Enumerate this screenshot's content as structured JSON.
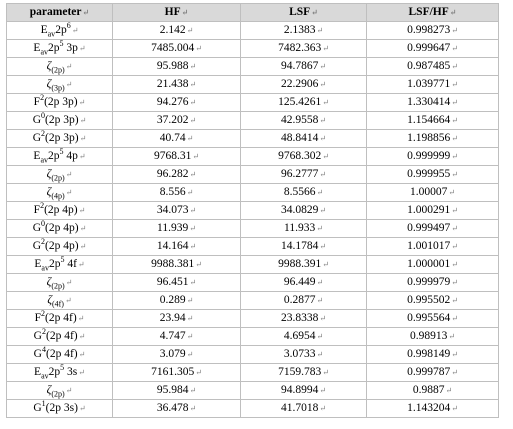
{
  "table": {
    "headers": [
      "parameter",
      "HF",
      "LSF",
      "LSF/HF"
    ],
    "paragraph_mark": "↵",
    "rows": [
      {
        "param": {
          "main": "E",
          "sub": "av",
          "post": "2p",
          "sup": "6"
        },
        "hf": "2.142",
        "lsf": "2.1383",
        "ratio": "0.998273"
      },
      {
        "param": {
          "main": "E",
          "sub": "av",
          "post": "2p",
          "sup": "5",
          "tail": " 3p"
        },
        "hf": "7485.004",
        "lsf": "7482.363",
        "ratio": "0.999647"
      },
      {
        "param": {
          "main": "ζ",
          "sub": "(2p)"
        },
        "hf": "95.988",
        "lsf": "94.7867",
        "ratio": "0.987485"
      },
      {
        "param": {
          "main": "ζ",
          "sub": "(3p)"
        },
        "hf": "21.438",
        "lsf": "22.2906",
        "ratio": "1.039771"
      },
      {
        "param": {
          "main": "F",
          "sup": "2",
          "post": "(2p 3p)"
        },
        "hf": "94.276",
        "lsf": "125.4261",
        "ratio": "1.330414"
      },
      {
        "param": {
          "main": "G",
          "sup": "0",
          "post": "(2p 3p)"
        },
        "hf": "37.202",
        "lsf": "42.9558",
        "ratio": "1.154664"
      },
      {
        "param": {
          "main": "G",
          "sup": "2",
          "post": "(2p 3p)"
        },
        "hf": "40.74",
        "lsf": "48.8414",
        "ratio": "1.198856"
      },
      {
        "param": {
          "main": "E",
          "sub": "av",
          "post": "2p",
          "sup": "5",
          "tail": " 4p"
        },
        "hf": "9768.31",
        "lsf": "9768.302",
        "ratio": "0.999999"
      },
      {
        "param": {
          "main": "ζ",
          "sub": "(2p)"
        },
        "hf": "96.282",
        "lsf": "96.2777",
        "ratio": "0.999955"
      },
      {
        "param": {
          "main": "ζ",
          "sub": "(4p)"
        },
        "hf": "8.556",
        "lsf": "8.5566",
        "ratio": "1.00007"
      },
      {
        "param": {
          "main": "F",
          "sup": "2",
          "post": "(2p 4p)"
        },
        "hf": "34.073",
        "lsf": "34.0829",
        "ratio": "1.000291"
      },
      {
        "param": {
          "main": "G",
          "sup": "0",
          "post": "(2p 4p)"
        },
        "hf": "11.939",
        "lsf": "11.933",
        "ratio": "0.999497"
      },
      {
        "param": {
          "main": "G",
          "sup": "2",
          "post": "(2p 4p)"
        },
        "hf": "14.164",
        "lsf": "14.1784",
        "ratio": "1.001017"
      },
      {
        "param": {
          "main": "E",
          "sub": "av",
          "post": "2p",
          "sup": "5",
          "tail": " 4f"
        },
        "hf": "9988.381",
        "lsf": "9988.391",
        "ratio": "1.000001"
      },
      {
        "param": {
          "main": "ζ",
          "sub": "(2p)"
        },
        "hf": "96.451",
        "lsf": "96.449",
        "ratio": "0.999979"
      },
      {
        "param": {
          "main": "ζ",
          "sub": "(4f)"
        },
        "hf": "0.289",
        "lsf": "0.2877",
        "ratio": "0.995502"
      },
      {
        "param": {
          "main": "F",
          "sup": "2",
          "post": "(2p 4f)"
        },
        "hf": "23.94",
        "lsf": "23.8338",
        "ratio": "0.995564"
      },
      {
        "param": {
          "main": "G",
          "sup": "2",
          "post": "(2p 4f)"
        },
        "hf": "4.747",
        "lsf": "4.6954",
        "ratio": "0.98913"
      },
      {
        "param": {
          "main": "G",
          "sup": "4",
          "post": "(2p 4f)"
        },
        "hf": "3.079",
        "lsf": "3.0733",
        "ratio": "0.998149"
      },
      {
        "param": {
          "main": "E",
          "sub": "av",
          "post": "2p",
          "sup": "5",
          "tail": " 3s"
        },
        "hf": "7161.305",
        "lsf": "7159.783",
        "ratio": "0.999787"
      },
      {
        "param": {
          "main": "ζ",
          "sub": "(2p)"
        },
        "hf": "95.984",
        "lsf": "94.8994",
        "ratio": "0.9887"
      },
      {
        "param": {
          "main": "G",
          "sup": "1",
          "post": "(2p 3s)"
        },
        "hf": "36.478",
        "lsf": "41.7018",
        "ratio": "1.143204"
      }
    ]
  }
}
